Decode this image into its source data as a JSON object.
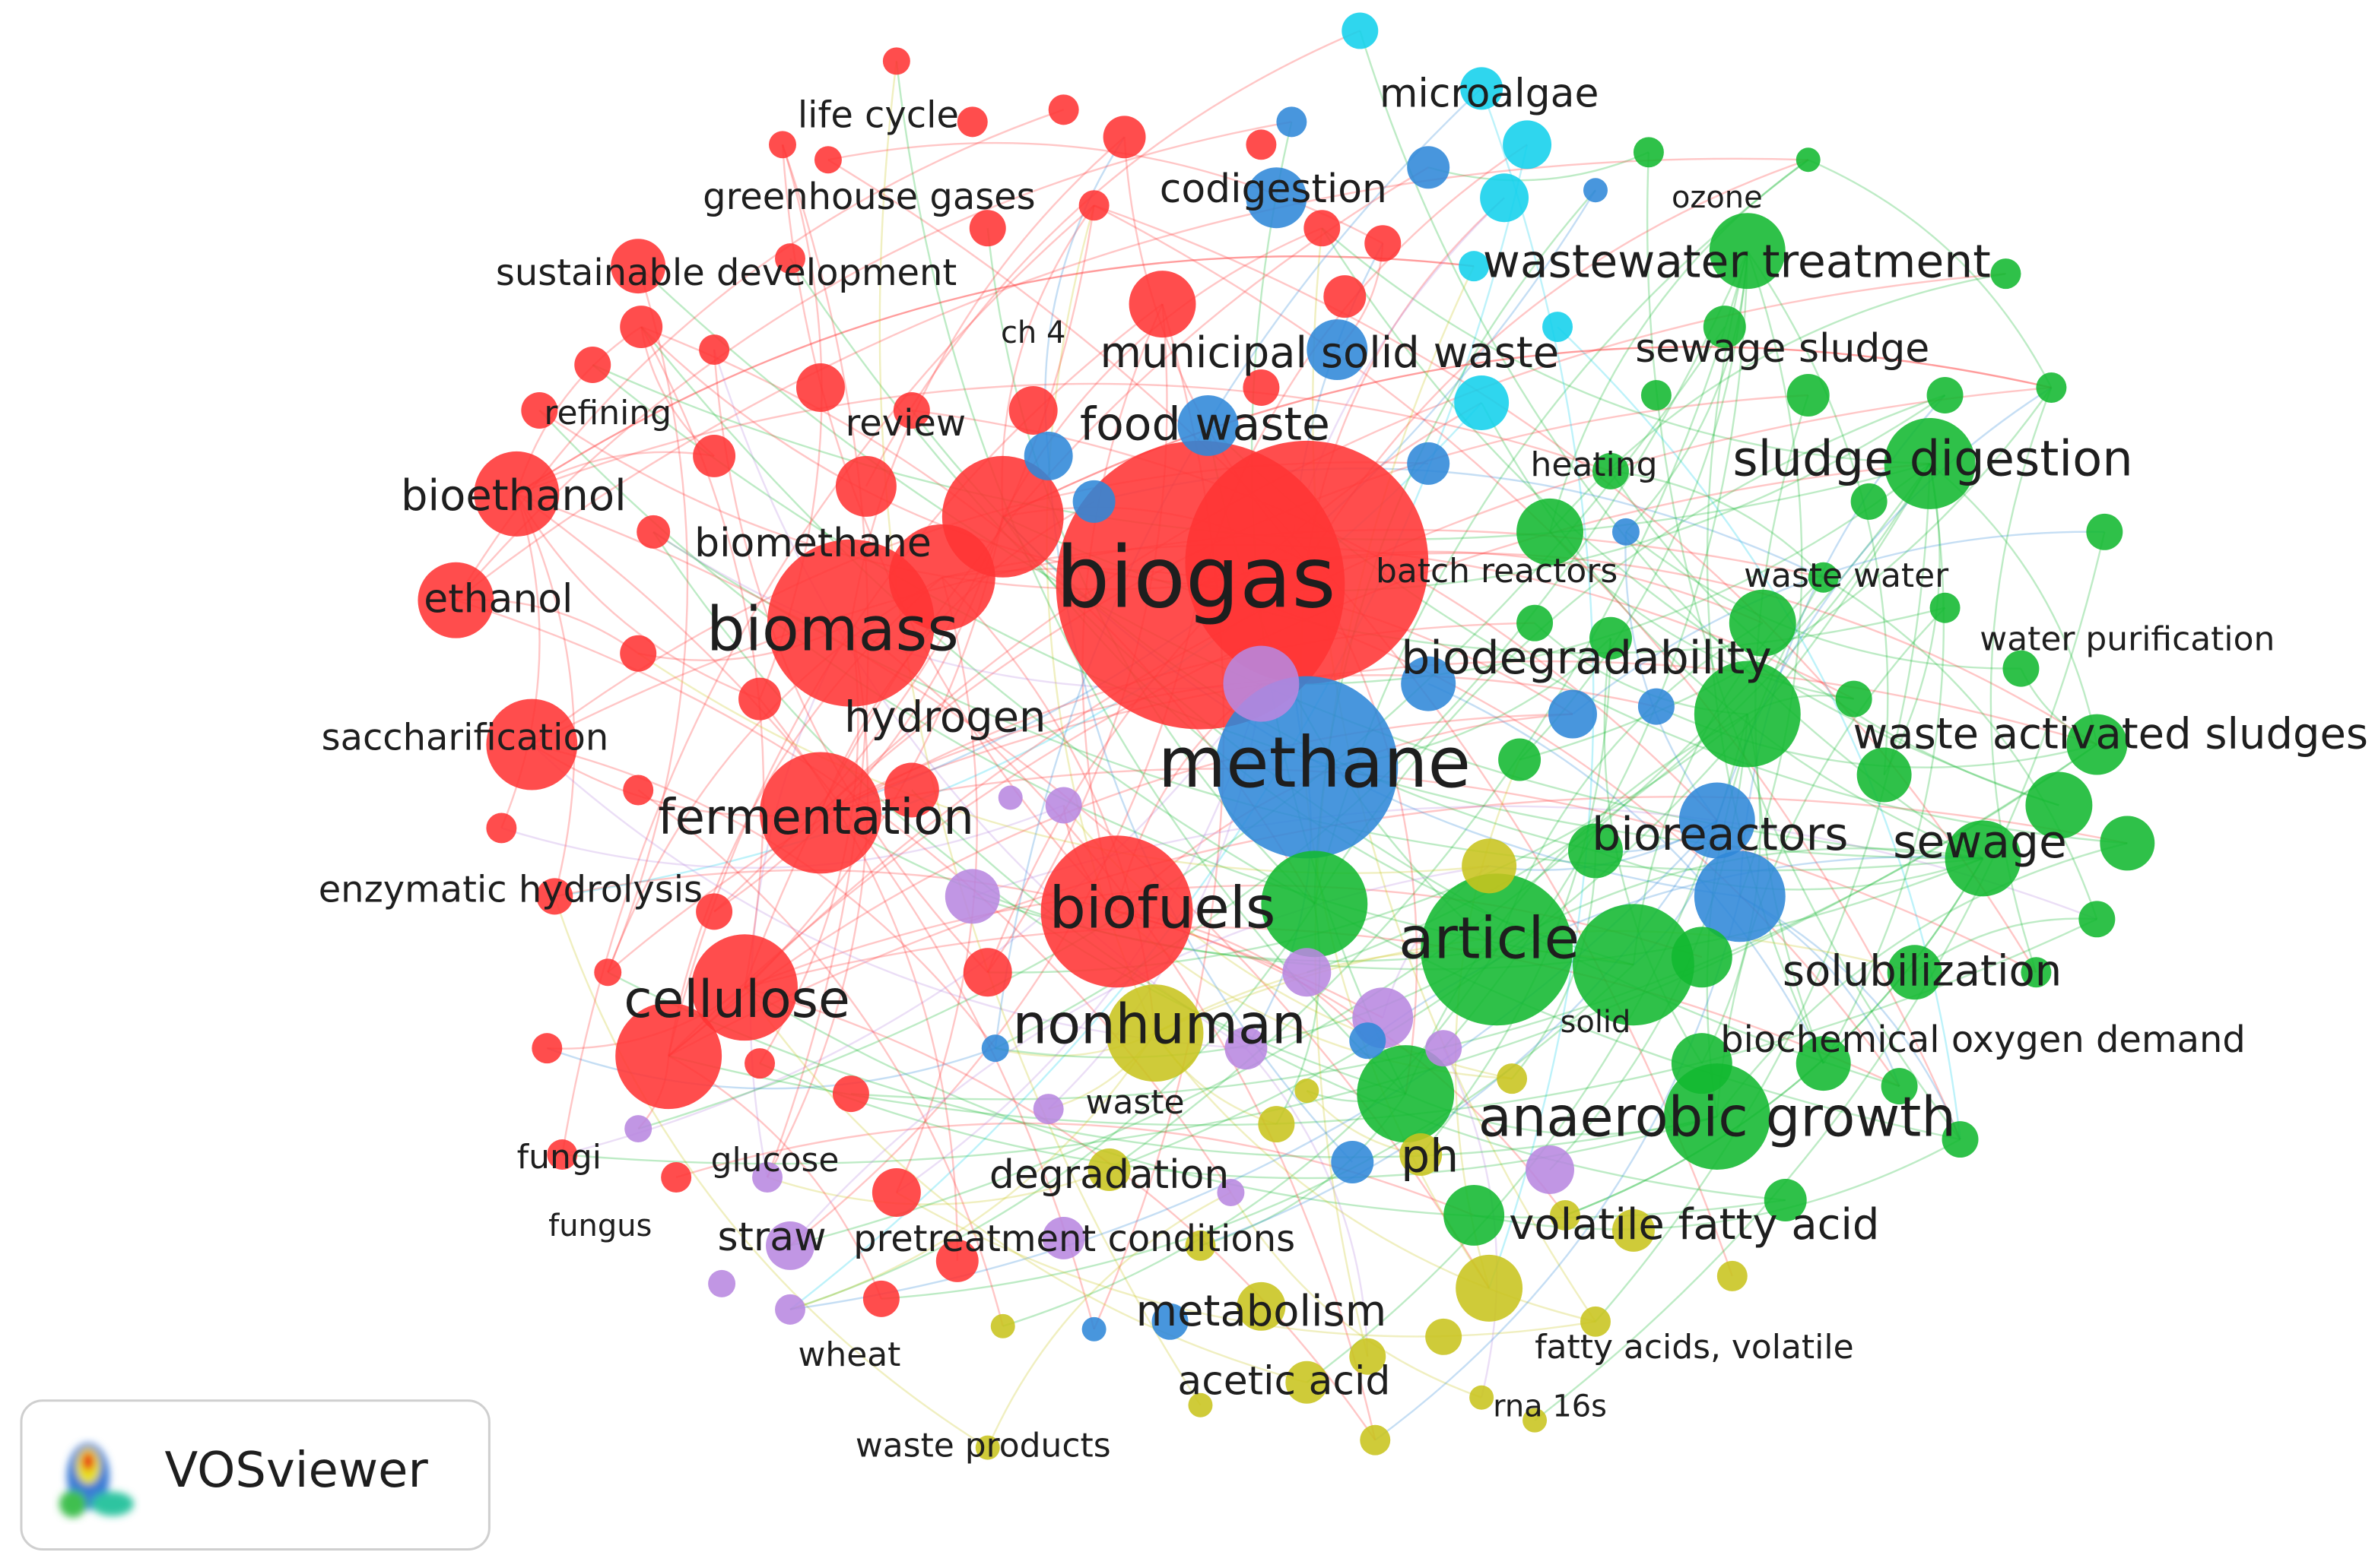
{
  "nodes": [
    {
      "label": "life cycle"
    },
    {
      "label": "microalgae"
    },
    {
      "label": "greenhouse gases"
    },
    {
      "label": "codigestion"
    },
    {
      "label": "ozone"
    },
    {
      "label": "sustainable development"
    },
    {
      "label": "wastewater treatment"
    },
    {
      "label": "ch 4"
    },
    {
      "label": "municipal solid waste"
    },
    {
      "label": "sewage sludge"
    },
    {
      "label": "refining"
    },
    {
      "label": "review"
    },
    {
      "label": "food waste"
    },
    {
      "label": "heating"
    },
    {
      "label": "sludge digestion"
    },
    {
      "label": "bioethanol"
    },
    {
      "label": "biomethane"
    },
    {
      "label": "biogas"
    },
    {
      "label": "batch reactors"
    },
    {
      "label": "waste water"
    },
    {
      "label": "ethanol"
    },
    {
      "label": "biomass"
    },
    {
      "label": "water purification"
    },
    {
      "label": "biodegradability"
    },
    {
      "label": "hydrogen"
    },
    {
      "label": "saccharification"
    },
    {
      "label": "methane"
    },
    {
      "label": "waste activated sludges"
    },
    {
      "label": "fermentation"
    },
    {
      "label": "bioreactors"
    },
    {
      "label": "sewage"
    },
    {
      "label": "enzymatic hydrolysis"
    },
    {
      "label": "biofuels"
    },
    {
      "label": "article"
    },
    {
      "label": "solubilization"
    },
    {
      "label": "cellulose"
    },
    {
      "label": "nonhuman"
    },
    {
      "label": "solid"
    },
    {
      "label": "biochemical oxygen demand"
    },
    {
      "label": "waste"
    },
    {
      "label": "anaerobic growth"
    },
    {
      "label": "fungi"
    },
    {
      "label": "glucose"
    },
    {
      "label": "degradation"
    },
    {
      "label": "ph"
    },
    {
      "label": "fungus"
    },
    {
      "label": "straw"
    },
    {
      "label": "pretreatment conditions"
    },
    {
      "label": "volatile fatty acid"
    },
    {
      "label": "metabolism"
    },
    {
      "label": "fatty acids, volatile"
    },
    {
      "label": "wheat"
    },
    {
      "label": "acetic acid"
    },
    {
      "label": "rna 16s"
    },
    {
      "label": "waste products"
    }
  ],
  "logo": {
    "text": "VOSviewer"
  }
}
